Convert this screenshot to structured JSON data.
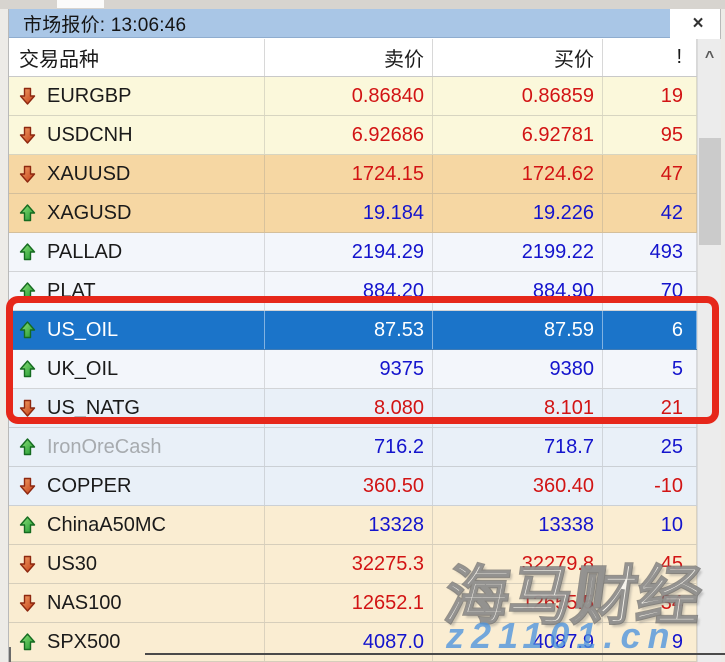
{
  "window": {
    "title": "市场报价: 13:06:46",
    "close_label": "×"
  },
  "columns": {
    "symbol": "交易品种",
    "sell": "卖价",
    "buy": "买价",
    "spread": "!"
  },
  "scrollbar": {
    "up_glyph": "^"
  },
  "rows": [
    {
      "symbol": "EURGBP",
      "sell": "0.86840",
      "buy": "0.86859",
      "spread": "19",
      "dir": "down",
      "group": "yellow",
      "selected": false,
      "disabled": false
    },
    {
      "symbol": "USDCNH",
      "sell": "6.92686",
      "buy": "6.92781",
      "spread": "95",
      "dir": "down",
      "group": "yellow",
      "selected": false,
      "disabled": false
    },
    {
      "symbol": "XAUUSD",
      "sell": "1724.15",
      "buy": "1724.62",
      "spread": "47",
      "dir": "down",
      "group": "peach",
      "selected": false,
      "disabled": false
    },
    {
      "symbol": "XAGUSD",
      "sell": "19.184",
      "buy": "19.226",
      "spread": "42",
      "dir": "up",
      "group": "peach",
      "selected": false,
      "disabled": false
    },
    {
      "symbol": "PALLAD",
      "sell": "2194.29",
      "buy": "2199.22",
      "spread": "493",
      "dir": "up",
      "group": "pale",
      "selected": false,
      "disabled": false
    },
    {
      "symbol": "PLAT",
      "sell": "884.20",
      "buy": "884.90",
      "spread": "70",
      "dir": "up",
      "group": "pale",
      "selected": false,
      "disabled": false
    },
    {
      "symbol": "US_OIL",
      "sell": "87.53",
      "buy": "87.59",
      "spread": "6",
      "dir": "up",
      "group": "pale",
      "selected": true,
      "disabled": false
    },
    {
      "symbol": "UK_OIL",
      "sell": "9375",
      "buy": "9380",
      "spread": "5",
      "dir": "up",
      "group": "pale",
      "selected": false,
      "disabled": false
    },
    {
      "symbol": "US_NATG",
      "sell": "8.080",
      "buy": "8.101",
      "spread": "21",
      "dir": "down",
      "group": "blue",
      "selected": false,
      "disabled": false
    },
    {
      "symbol": "IronOreCash",
      "sell": "716.2",
      "buy": "718.7",
      "spread": "25",
      "dir": "up",
      "group": "blue",
      "selected": false,
      "disabled": true
    },
    {
      "symbol": "COPPER",
      "sell": "360.50",
      "buy": "360.40",
      "spread": "-10",
      "dir": "down",
      "group": "blue",
      "selected": false,
      "disabled": false
    },
    {
      "symbol": "ChinaA50MC",
      "sell": "13328",
      "buy": "13338",
      "spread": "10",
      "dir": "up",
      "group": "cream",
      "selected": false,
      "disabled": false
    },
    {
      "symbol": "US30",
      "sell": "32275.3",
      "buy": "32279.8",
      "spread": "45",
      "dir": "down",
      "group": "cream",
      "selected": false,
      "disabled": false
    },
    {
      "symbol": "NAS100",
      "sell": "12652.1",
      "buy": "12655.5",
      "spread": "34",
      "dir": "down",
      "group": "cream",
      "selected": false,
      "disabled": false
    },
    {
      "symbol": "SPX500",
      "sell": "4087.0",
      "buy": "4087.9",
      "spread": "9",
      "dir": "up",
      "group": "cream",
      "selected": false,
      "disabled": false
    }
  ],
  "watermark": {
    "line1": "海马财经",
    "line2": "z21101.cn"
  },
  "colors": {
    "titlebar": "#A9C6E6",
    "selection": "#1B74C9",
    "price_up": "#1414CD",
    "price_down": "#D21414",
    "annotation_red": "#E6271A",
    "group_yellow": "#FBF8DB",
    "group_peach": "#F6D7A3",
    "group_pale": "#F3F6FB",
    "group_blue": "#E9F0F8",
    "group_cream": "#FAEDD2",
    "arrow_up_green": "#1E9630",
    "arrow_down_red": "#C23A14"
  }
}
